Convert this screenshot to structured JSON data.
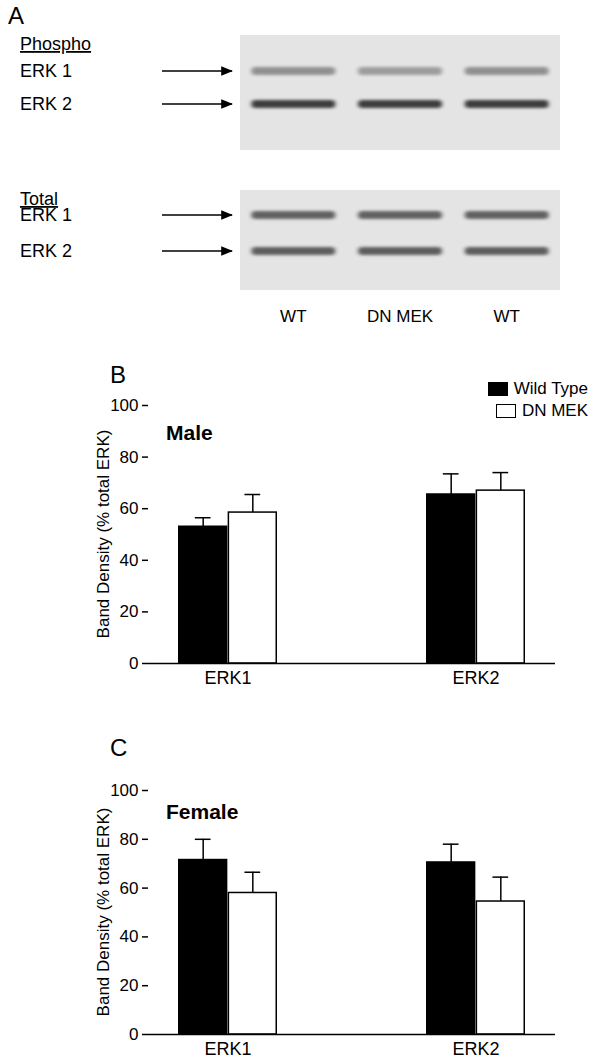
{
  "blot": {
    "panel_label": "A",
    "sections": [
      {
        "label": "Phospho",
        "rows": [
          "ERK 1",
          "ERK 2"
        ]
      },
      {
        "label": "Total",
        "rows": [
          "ERK 1",
          "ERK 2"
        ]
      }
    ],
    "lanes": [
      "WT",
      "DN MEK",
      "WT"
    ]
  },
  "chart_data": [
    {
      "panel_label": "B",
      "type": "bar",
      "title": "Male",
      "y_label": "Band Density (% total ERK)",
      "categories": [
        "ERK1",
        "ERK2"
      ],
      "series": [
        {
          "name": "Wild Type",
          "color": "#000000",
          "values": [
            53,
            65.5
          ],
          "errors": [
            3.5,
            8
          ]
        },
        {
          "name": "DN MEK",
          "color": "#ffffff",
          "values": [
            58.5,
            67
          ],
          "errors": [
            7,
            7
          ]
        }
      ],
      "ylim": [
        0,
        100
      ],
      "yticks": [
        0,
        20,
        40,
        60,
        80,
        100
      ],
      "legend": "top-right"
    },
    {
      "panel_label": "C",
      "type": "bar",
      "title": "Female",
      "y_label": "Band Density (% total ERK)",
      "categories": [
        "ERK1",
        "ERK2"
      ],
      "series": [
        {
          "color": "#000000",
          "values": [
            71.5,
            70.5
          ],
          "errors": [
            8.5,
            7.5
          ]
        },
        {
          "color": "#ffffff",
          "values": [
            58,
            54.5
          ],
          "errors": [
            8.5,
            10
          ]
        }
      ],
      "ylim": [
        0,
        100
      ],
      "yticks": [
        0,
        20,
        40,
        60,
        80,
        100
      ]
    }
  ]
}
